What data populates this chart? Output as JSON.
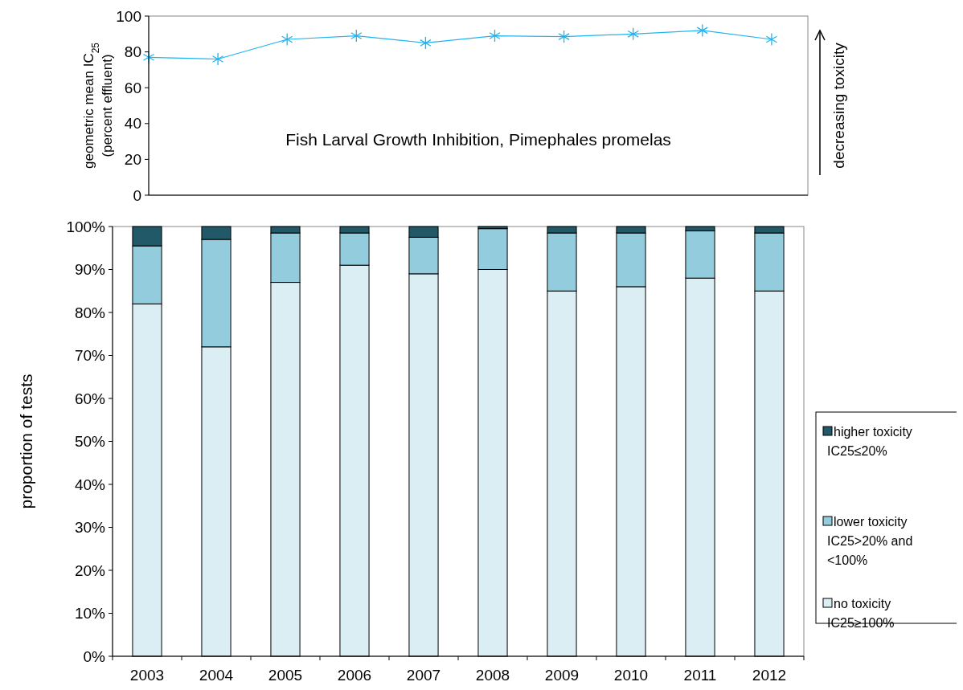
{
  "chart_data": [
    {
      "type": "line",
      "categories": [
        null,
        null,
        null,
        null,
        null,
        null,
        null,
        null,
        null,
        null
      ],
      "ylabel": "geometric mean IC$_{25}$\n(percent effluent)",
      "ylim": [
        0,
        100
      ],
      "yticks": [
        0,
        20,
        40,
        60,
        80,
        100
      ],
      "tick_labels": "y",
      "marker": "cross",
      "grid": false,
      "legend": false,
      "series": [
        {
          "color": "#1fb4f0",
          "values": [
            77,
            76,
            87,
            89,
            85,
            89,
            88.5,
            90,
            92,
            87
          ]
        }
      ],
      "annotations": [
        "Fish Larval Growth Inhibition,  Pimephales promelas",
        "decreasing toxicity"
      ]
    },
    {
      "type": "bar",
      "stacked": true,
      "categories": [
        "2003",
        "2004",
        "2005",
        "2006",
        "2007",
        "2008",
        "2009",
        "2010",
        "2011",
        "2012"
      ],
      "ylabel": "proportion of tests",
      "ylim": [
        0,
        100
      ],
      "yticks": [
        {
          "value": 0,
          "label": "0%"
        },
        {
          "value": 10,
          "label": "10%"
        },
        {
          "value": 20,
          "label": "20%"
        },
        {
          "value": 30,
          "label": "30%"
        },
        {
          "value": 40,
          "label": "40%"
        },
        {
          "value": 50,
          "label": "50%"
        },
        {
          "value": 60,
          "label": "60%"
        },
        {
          "value": 70,
          "label": "70%"
        },
        {
          "value": 80,
          "label": "80%"
        },
        {
          "value": 90,
          "label": "90%"
        },
        {
          "value": 100,
          "label": "100%"
        }
      ],
      "grid": false,
      "legend": "right",
      "series": [
        {
          "name": "no toxicity IC25≥100%",
          "color": "#dbeef4",
          "values": [
            82,
            72,
            87,
            91,
            89,
            90,
            85,
            86,
            88,
            85
          ]
        },
        {
          "name": "lower toxicity IC25>20% and <100%",
          "color": "#93cddd",
          "values": [
            13.5,
            25,
            11.5,
            7.5,
            8.5,
            9.5,
            13.5,
            12.5,
            11,
            13.5
          ]
        },
        {
          "name": "higher toxicity IC25≤20%",
          "color": "#215968",
          "values": [
            4.5,
            3,
            1.5,
            1.5,
            2.5,
            0.5,
            1.5,
            1.5,
            1,
            1.5
          ]
        }
      ]
    }
  ]
}
